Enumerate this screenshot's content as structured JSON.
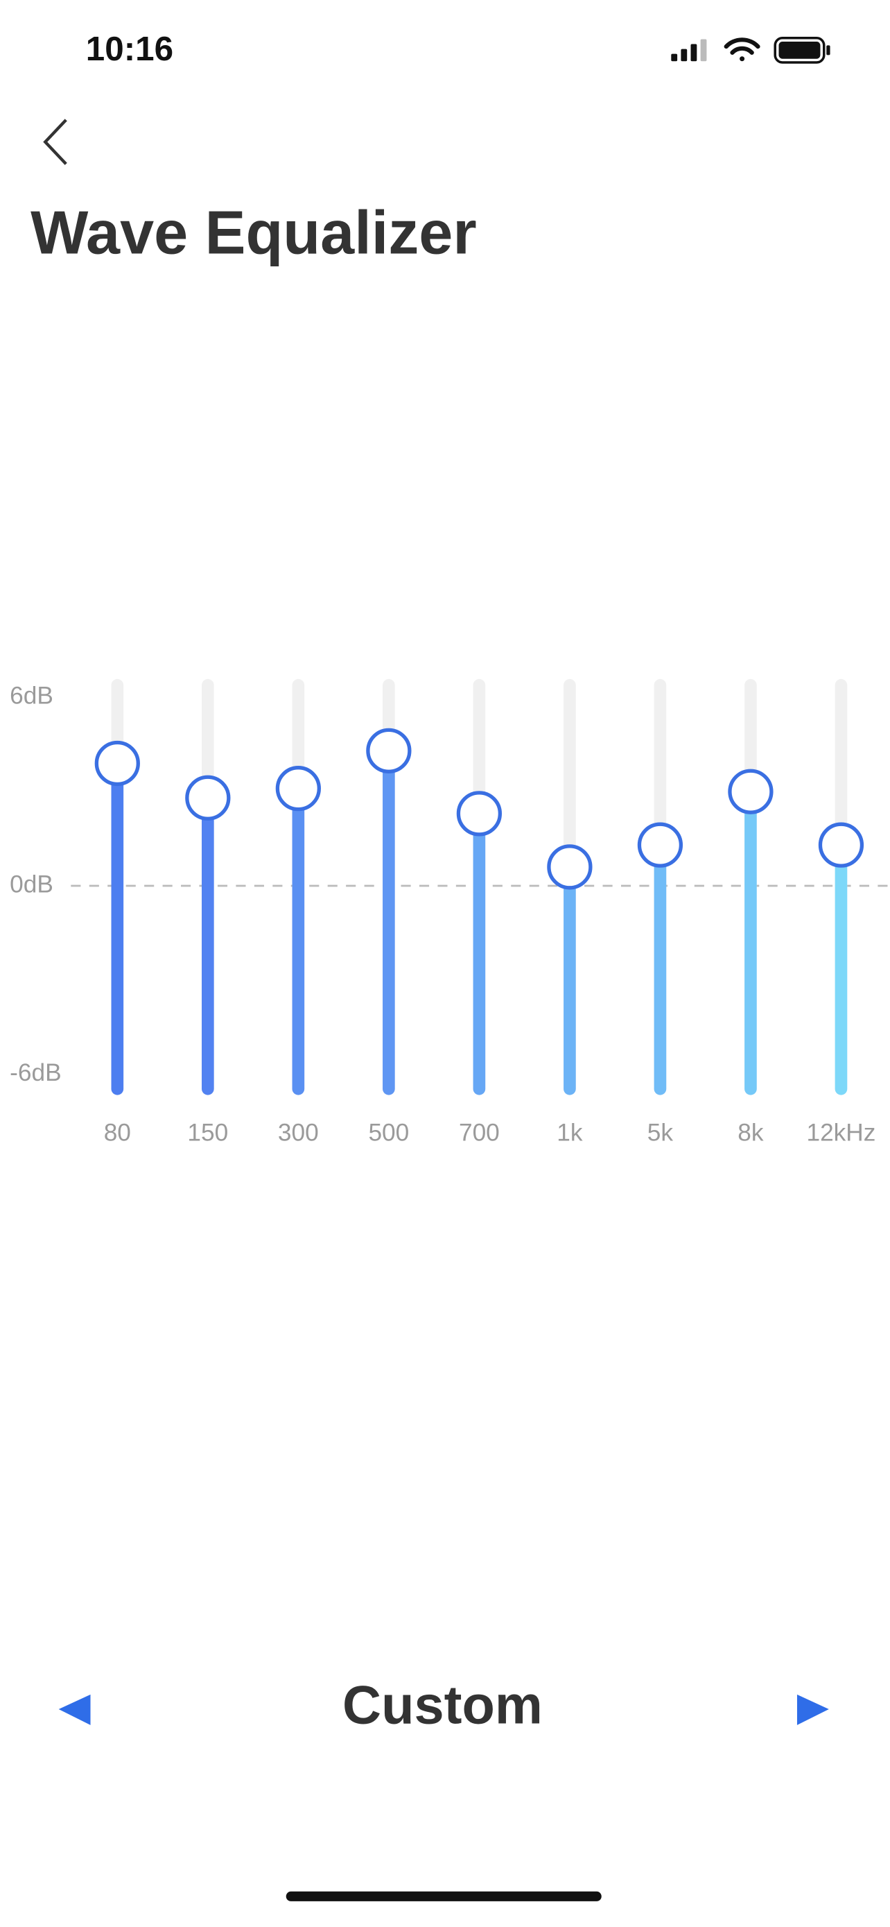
{
  "status_bar": {
    "time": "10:16"
  },
  "title": "Wave Equalizer",
  "chart_data": {
    "type": "bar",
    "categories": [
      "80",
      "150",
      "300",
      "500",
      "700",
      "1k",
      "5k",
      "8k",
      "12kHz"
    ],
    "values": [
      3.9,
      2.8,
      3.1,
      4.3,
      2.3,
      0.6,
      1.3,
      3.0,
      1.3
    ],
    "colors": [
      "#4d7ef0",
      "#5282f1",
      "#5a90f2",
      "#5f96f3",
      "#66a7f5",
      "#6cb3f6",
      "#70bcf7",
      "#75c9f8",
      "#7dd8f9"
    ],
    "ylim": [
      -6,
      6
    ],
    "yticks": [
      {
        "value": 6,
        "label": "6dB"
      },
      {
        "value": 0,
        "label": "0dB"
      },
      {
        "value": -6,
        "label": "-6dB"
      }
    ]
  },
  "preset": "Custom"
}
